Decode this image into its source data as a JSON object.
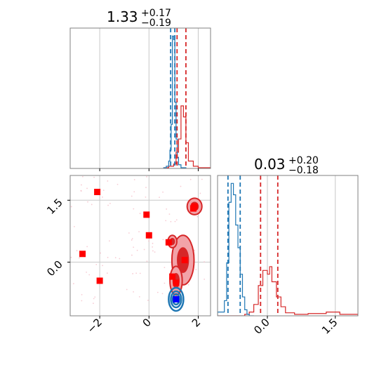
{
  "colors": {
    "red": "#d62728",
    "marker_red": "#ff0000",
    "blue": "#1f77b4",
    "marker_blue": "#0000ff",
    "grid": "#c8c8c8",
    "axes": "#808080",
    "fill_light": "#f2a3a8",
    "fill_dark": "#d62728",
    "scatter": "#f4b6c2"
  },
  "chart_data": [
    {
      "panel": "top-left",
      "type": "line",
      "subtype": "histogram",
      "title": {
        "value": "1.33",
        "upper": "+0.17",
        "lower": "−0.19"
      },
      "xlim": [
        -3.2,
        2.5
      ],
      "grid": true,
      "series": [
        {
          "color": "red",
          "bins": [
            0.6,
            0.8,
            1.0,
            1.1,
            1.2,
            1.3,
            1.4,
            1.5,
            1.6,
            1.8,
            2.0,
            2.5
          ],
          "counts": [
            1,
            3,
            6,
            22,
            40,
            85,
            70,
            35,
            10,
            3,
            1
          ]
        },
        {
          "color": "blue",
          "bins": [
            0.6,
            0.7,
            0.8,
            0.85,
            0.9,
            0.95,
            1.0,
            1.05,
            1.1,
            1.15,
            1.2,
            1.3,
            1.5
          ],
          "counts": [
            1,
            3,
            10,
            25,
            60,
            180,
            175,
            90,
            40,
            15,
            5,
            1
          ]
        }
      ],
      "quantile_lines": {
        "red": [
          1.14,
          1.5
        ],
        "blue": [
          0.88,
          1.05
        ]
      }
    },
    {
      "panel": "bottom-left",
      "type": "scatter",
      "xlim": [
        -3.2,
        2.5
      ],
      "ylim": [
        -1.3,
        2.1
      ],
      "x_ticks": [
        "−2",
        "0",
        "2"
      ],
      "x_tick_values": [
        -2,
        0,
        2
      ],
      "y_ticks": [
        "0.0",
        "1.5"
      ],
      "y_tick_values": [
        0.0,
        1.5
      ],
      "grid": true,
      "red_markers": [
        {
          "x": -2.1,
          "y": 1.7
        },
        {
          "x": -2.7,
          "y": 0.2
        },
        {
          "x": -2.0,
          "y": -0.45
        },
        {
          "x": -0.1,
          "y": 1.15
        },
        {
          "x": 0.0,
          "y": 0.65
        },
        {
          "x": 0.8,
          "y": 0.48
        },
        {
          "x": 1.45,
          "y": 0.05
        },
        {
          "x": 0.95,
          "y": -0.35
        },
        {
          "x": 1.1,
          "y": -0.5
        },
        {
          "x": 1.8,
          "y": 1.3
        },
        {
          "x": 1.85,
          "y": 1.35
        }
      ],
      "blue_marker": {
        "x": 1.1,
        "y": -0.9
      },
      "red_blobs": [
        {
          "cx": 1.38,
          "cy": 0.05,
          "rx": 0.45,
          "ry": 0.6
        },
        {
          "cx": 1.85,
          "cy": 1.35,
          "rx": 0.3,
          "ry": 0.2
        },
        {
          "cx": 0.95,
          "cy": 0.5,
          "rx": 0.18,
          "ry": 0.15
        },
        {
          "cx": 1.1,
          "cy": -0.45,
          "rx": 0.25,
          "ry": 0.35
        }
      ],
      "blue_blob": {
        "cx": 1.1,
        "cy": -0.9,
        "rx": 0.3,
        "ry": 0.28
      }
    },
    {
      "panel": "bottom-right",
      "type": "line",
      "subtype": "histogram",
      "title": {
        "value": "0.03",
        "upper": "+0.20",
        "lower": "−0.18"
      },
      "xlim": [
        -1.1,
        2.0
      ],
      "x_ticks": [
        "0.0",
        "1.5"
      ],
      "x_tick_values": [
        0.0,
        1.5
      ],
      "grid": true,
      "series": [
        {
          "color": "red",
          "bins": [
            -1.1,
            -0.5,
            -0.4,
            -0.3,
            -0.2,
            -0.1,
            0.0,
            0.05,
            0.1,
            0.2,
            0.3,
            0.4,
            0.6,
            0.9,
            1.3,
            1.6,
            2.0
          ],
          "counts": [
            0,
            2,
            5,
            15,
            40,
            60,
            55,
            65,
            45,
            25,
            12,
            4,
            2,
            3,
            5,
            2
          ]
        },
        {
          "color": "blue",
          "bins": [
            -1.1,
            -0.95,
            -0.9,
            -0.85,
            -0.8,
            -0.75,
            -0.7,
            -0.65,
            -0.6,
            -0.55,
            -0.5,
            -0.45,
            -0.4,
            -0.3
          ],
          "counts": [
            5,
            20,
            70,
            150,
            175,
            160,
            120,
            90,
            55,
            25,
            8,
            2,
            0
          ]
        }
      ],
      "quantile_lines": {
        "red": [
          -0.15,
          0.23
        ],
        "blue": [
          -0.87,
          -0.6
        ]
      }
    }
  ]
}
